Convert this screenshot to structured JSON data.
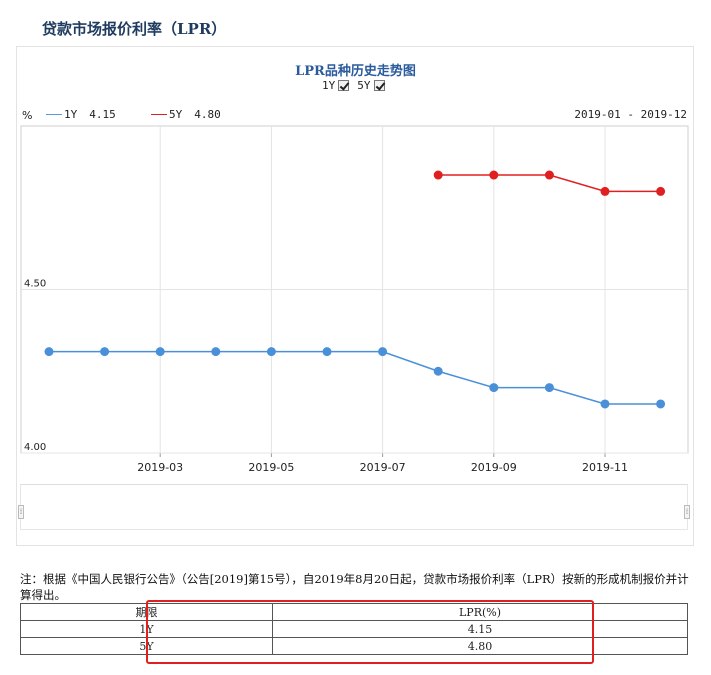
{
  "page": {
    "title": "贷款市场报价利率（LPR）"
  },
  "chart": {
    "title": "LPR品种历史走势图",
    "toggles": [
      {
        "label": "1Y",
        "checked": true
      },
      {
        "label": "5Y",
        "checked": true
      }
    ],
    "unit": "%",
    "legend": [
      {
        "name": "1Y",
        "value": "4.15",
        "color": "#5b9bd5"
      },
      {
        "name": "5Y",
        "value": "4.80",
        "color": "#e02020"
      }
    ],
    "range": "2019-01 - 2019-12"
  },
  "chart_data": {
    "type": "line",
    "x": [
      "2019-01",
      "2019-02",
      "2019-03",
      "2019-04",
      "2019-05",
      "2019-06",
      "2019-07",
      "2019-08",
      "2019-09",
      "2019-10",
      "2019-11",
      "2019-12"
    ],
    "x_tick_labels": [
      "2019-03",
      "2019-05",
      "2019-07",
      "2019-09",
      "2019-11"
    ],
    "y_tick_labels": [
      "4.00",
      "4.50"
    ],
    "ylim": [
      4.0,
      5.0
    ],
    "grid": true,
    "series": [
      {
        "name": "1Y",
        "color": "#4a90d9",
        "values": [
          4.31,
          4.31,
          4.31,
          4.31,
          4.31,
          4.31,
          4.31,
          4.25,
          4.2,
          4.2,
          4.15,
          4.15
        ]
      },
      {
        "name": "5Y",
        "color": "#e02020",
        "values": [
          null,
          null,
          null,
          null,
          null,
          null,
          null,
          4.85,
          4.85,
          4.85,
          4.8,
          4.8
        ]
      }
    ]
  },
  "note": "注：根据《中国人民银行公告》（公告[2019]第15号），自2019年8月20日起，贷款市场报价利率（LPR）按新的形成机制报价并计算得出。",
  "table": {
    "headers": [
      "期限",
      "LPR(%)"
    ],
    "rows": [
      [
        "1Y",
        "4.15"
      ],
      [
        "5Y",
        "4.80"
      ]
    ]
  }
}
